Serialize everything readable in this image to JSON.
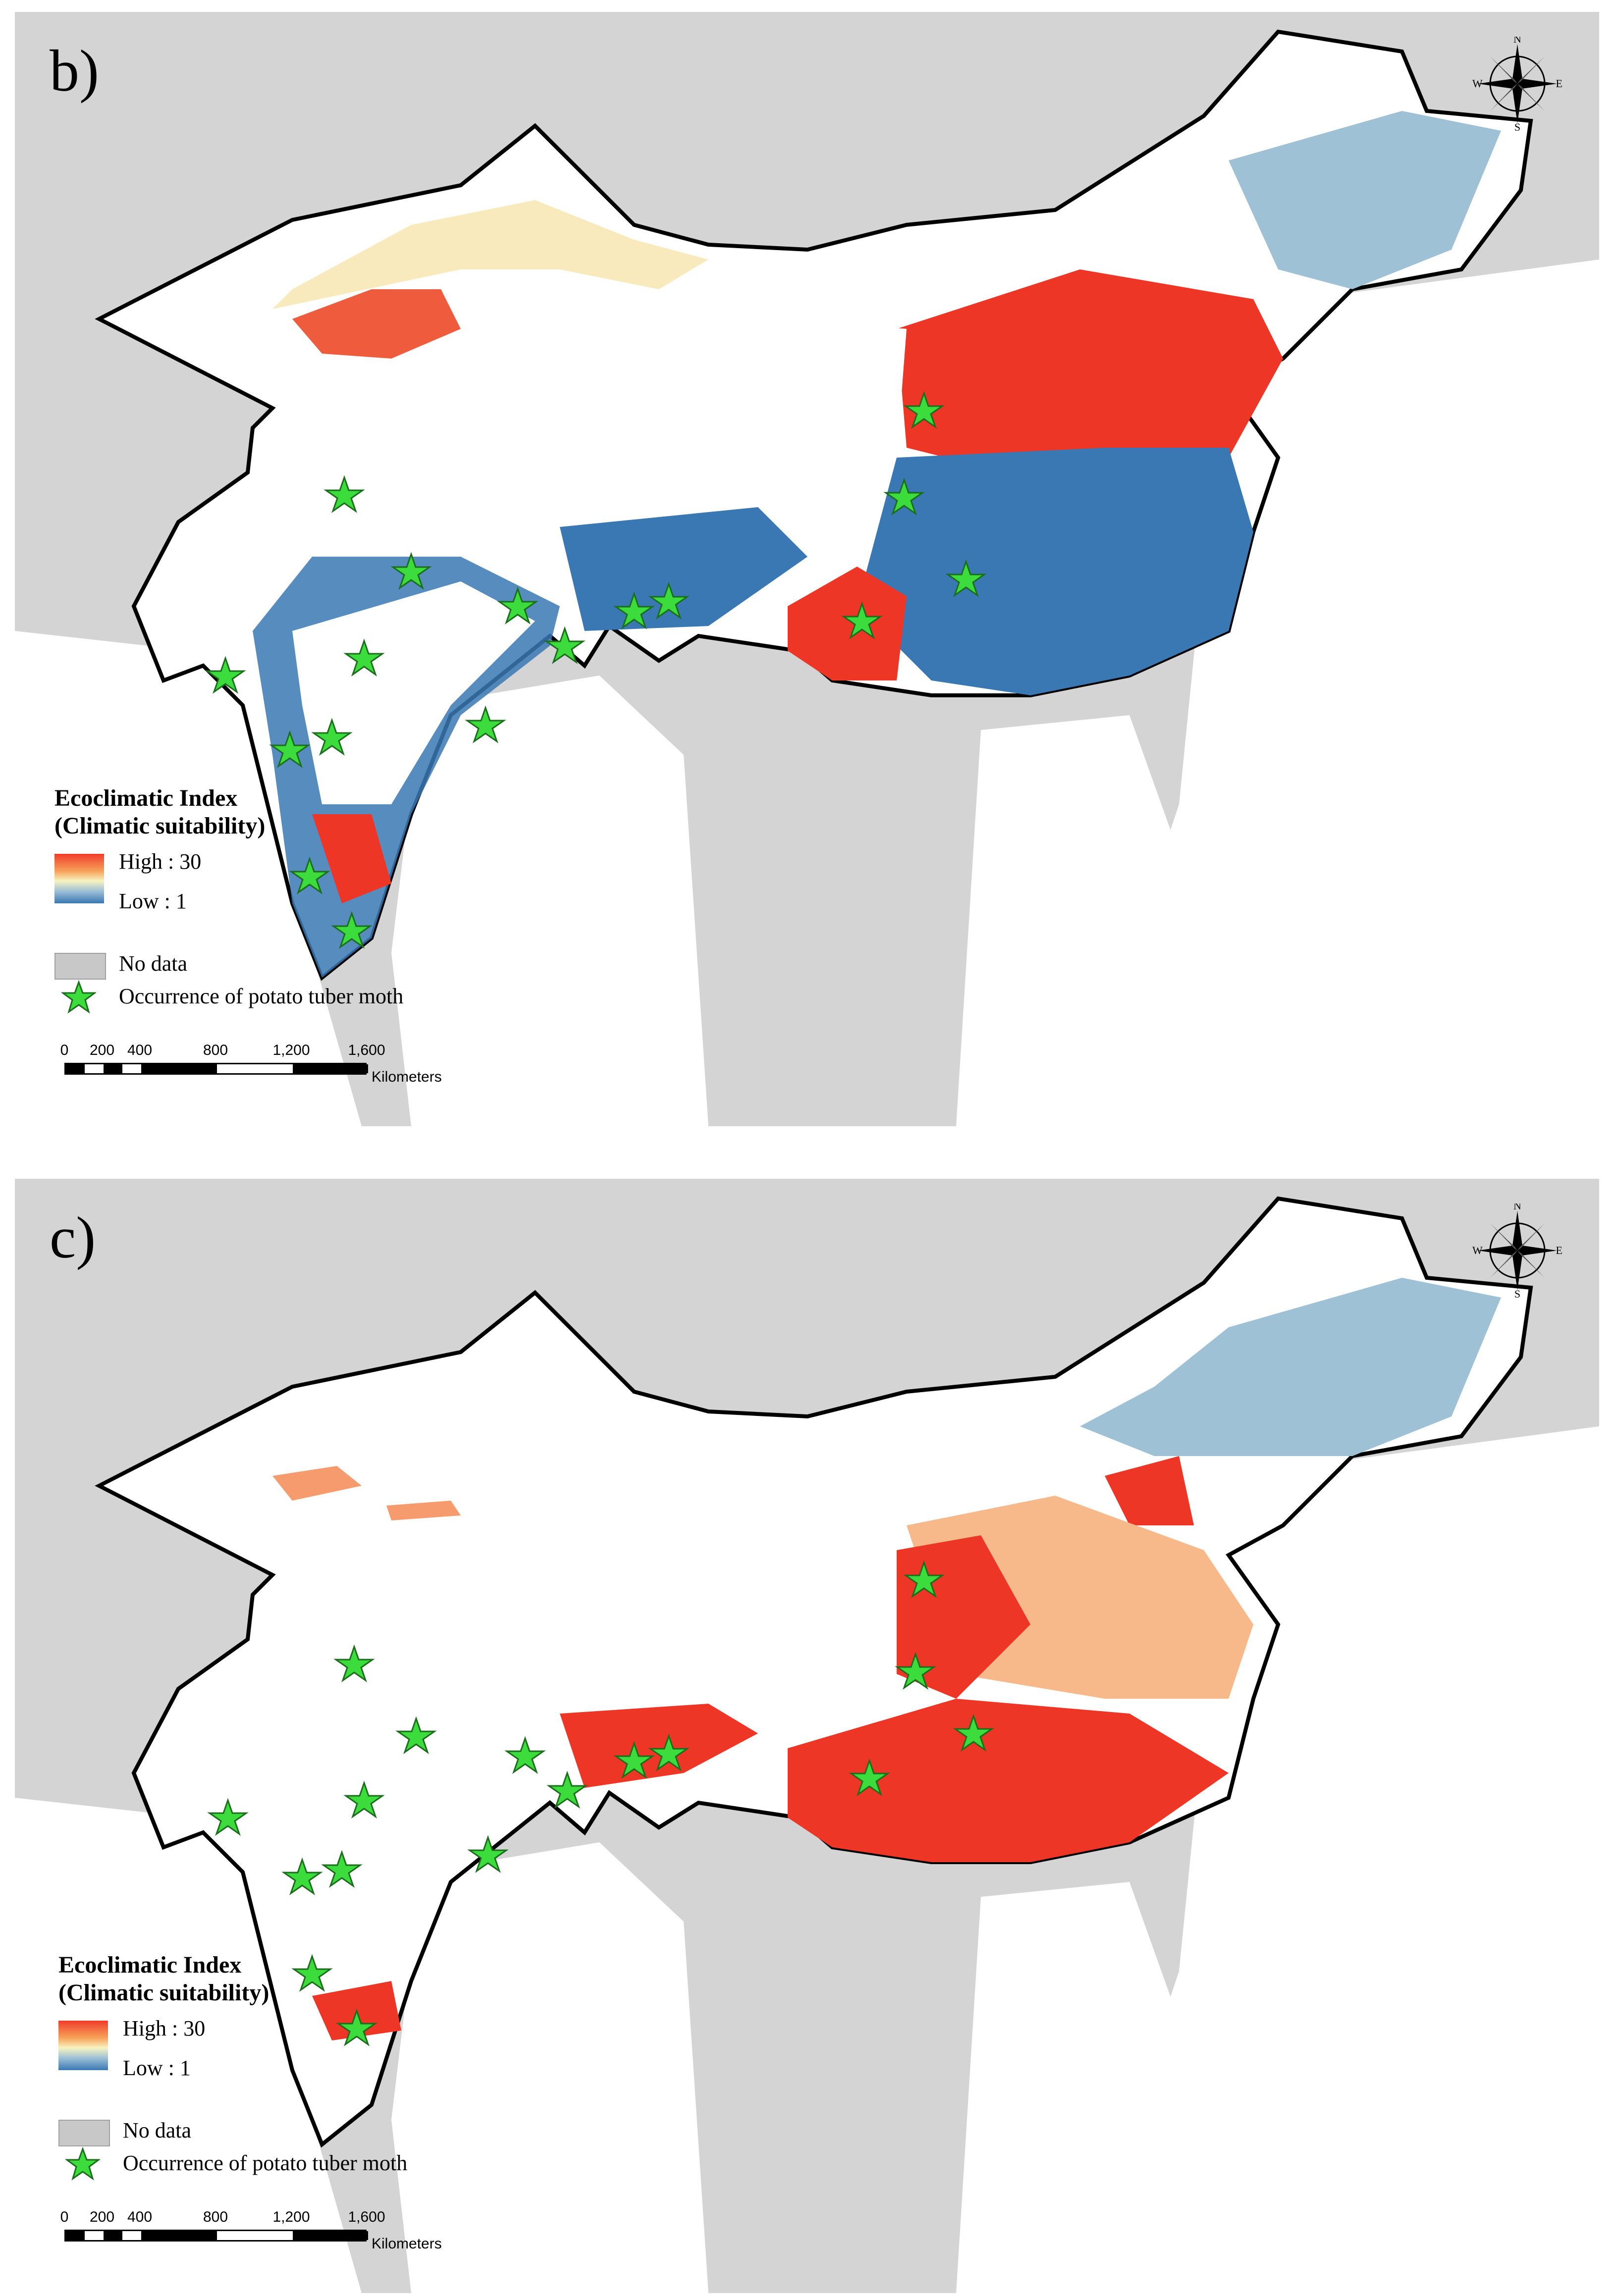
{
  "panels": [
    {
      "id": "b",
      "label": "b)",
      "scenario": "panel-b"
    },
    {
      "id": "c",
      "label": "c)",
      "scenario": "panel-c"
    }
  ],
  "legend": {
    "title_line1": "Ecoclimatic Index",
    "title_line2": "(Climatic suitability)",
    "high_label": "High : 30",
    "low_label": "Low : 1",
    "nodata_label": "No data",
    "occurrence_label": "Occurrence of potato tuber moth",
    "ramp_colors": [
      "#f03b2a",
      "#f7a35a",
      "#f7f3c0",
      "#9fc1d6",
      "#3a78b3"
    ],
    "nodata_color": "#c8c8c8",
    "star_color": "#3ddc3d"
  },
  "scalebar": {
    "ticks": [
      "0",
      "200",
      "400",
      "800",
      "1,200",
      "1,600"
    ],
    "units": "Kilometers"
  },
  "compass": {
    "north": "N",
    "south": "S",
    "east": "E",
    "west": "W"
  },
  "occurrences_count": 17
}
